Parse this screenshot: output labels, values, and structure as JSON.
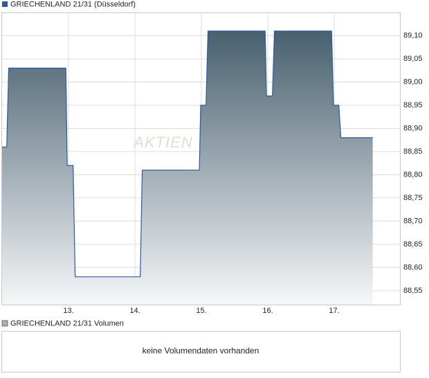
{
  "chart_data": {
    "type": "line",
    "watermark": "AKTIEN",
    "series": [
      {
        "name": "GRIECHENLAND 21/31 (Düsseldorf)",
        "color": "#2c5aa0",
        "x": [
          12.0,
          12.07,
          12.1,
          12.96,
          12.98,
          13.07,
          13.1,
          14.08,
          14.11,
          14.97,
          14.99,
          15.07,
          15.1,
          15.96,
          15.98,
          16.07,
          16.1,
          16.96,
          16.99,
          17.07,
          17.1,
          17.58
        ],
        "values": [
          88.86,
          88.86,
          89.03,
          89.03,
          88.82,
          88.82,
          88.58,
          88.58,
          88.81,
          88.81,
          88.95,
          88.95,
          89.11,
          89.11,
          88.97,
          88.97,
          89.11,
          89.11,
          88.95,
          88.95,
          88.88,
          88.88
        ]
      }
    ],
    "xlim": [
      12,
      18
    ],
    "xticks": [
      {
        "value": 13,
        "label": "13."
      },
      {
        "value": 14,
        "label": "14."
      },
      {
        "value": 15,
        "label": "15."
      },
      {
        "value": 16,
        "label": "16."
      },
      {
        "value": 17,
        "label": "17."
      }
    ],
    "ylim": [
      88.52,
      89.15
    ],
    "yticks": [
      {
        "value": 88.55,
        "label": "88,55"
      },
      {
        "value": 88.6,
        "label": "88,60"
      },
      {
        "value": 88.65,
        "label": "88,65"
      },
      {
        "value": 88.7,
        "label": "88,70"
      },
      {
        "value": 88.75,
        "label": "88,75"
      },
      {
        "value": 88.8,
        "label": "88,80"
      },
      {
        "value": 88.85,
        "label": "88,85"
      },
      {
        "value": 88.9,
        "label": "88,90"
      },
      {
        "value": 88.95,
        "label": "88,95"
      },
      {
        "value": 89.0,
        "label": "89,00"
      },
      {
        "value": 89.05,
        "label": "89,05"
      },
      {
        "value": 89.1,
        "label": "89,10"
      }
    ],
    "grid": true
  },
  "volume_chart": {
    "legend": "GRIECHENLAND 21/31 Volumen",
    "color": "#b0b0b0",
    "message": "keine Volumendaten vorhanden"
  }
}
